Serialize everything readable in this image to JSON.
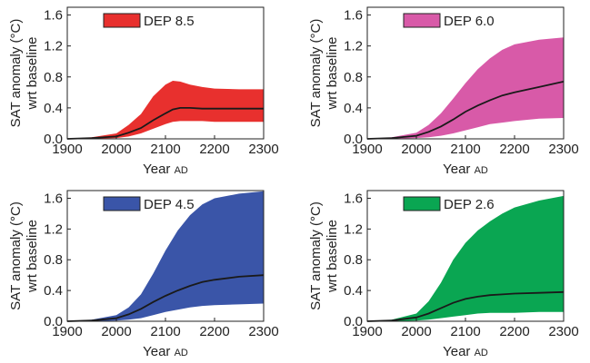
{
  "chart_data": [
    {
      "type": "area",
      "legend": "DEP 8.5",
      "color": "#e8302e",
      "xlabel": "Year",
      "xlabel_suffix": "AD",
      "ylabel_line1": "SAT anomaly (°C)",
      "ylabel_line2": "wrt baseline",
      "xlim": [
        1900,
        2300
      ],
      "ylim": [
        0,
        1.7
      ],
      "xticks": [
        1900,
        2000,
        2100,
        2200,
        2300
      ],
      "yticks": [
        0.0,
        0.4,
        0.8,
        1.2,
        1.6
      ],
      "ytick_labels": [
        "0.0",
        "0.4",
        "0.8",
        "1.2",
        "1.6"
      ],
      "legend_position": "top-left",
      "x": [
        1900,
        1950,
        2000,
        2025,
        2050,
        2075,
        2100,
        2115,
        2130,
        2150,
        2175,
        2200,
        2250,
        2300
      ],
      "lower": [
        0,
        0,
        0.01,
        0.03,
        0.07,
        0.13,
        0.19,
        0.22,
        0.23,
        0.23,
        0.23,
        0.22,
        0.22,
        0.22
      ],
      "upper": [
        0,
        0.02,
        0.07,
        0.18,
        0.32,
        0.55,
        0.7,
        0.75,
        0.74,
        0.7,
        0.67,
        0.65,
        0.64,
        0.64
      ],
      "mean": [
        0,
        0.01,
        0.03,
        0.08,
        0.14,
        0.24,
        0.33,
        0.38,
        0.4,
        0.4,
        0.39,
        0.39,
        0.39,
        0.39
      ]
    },
    {
      "type": "area",
      "legend": "DEP 6.0",
      "color": "#d85aa8",
      "xlabel": "Year",
      "xlabel_suffix": "AD",
      "ylabel_line1": "SAT anomaly (°C)",
      "ylabel_line2": "wrt baseline",
      "xlim": [
        1900,
        2300
      ],
      "ylim": [
        0,
        1.7
      ],
      "xticks": [
        1900,
        2000,
        2100,
        2200,
        2300
      ],
      "yticks": [
        0.0,
        0.4,
        0.8,
        1.2,
        1.6
      ],
      "ytick_labels": [
        "0.0",
        "0.4",
        "0.8",
        "1.2",
        "1.6"
      ],
      "legend_position": "top-left",
      "x": [
        1900,
        1950,
        2000,
        2025,
        2050,
        2075,
        2100,
        2125,
        2150,
        2175,
        2200,
        2250,
        2300
      ],
      "lower": [
        0,
        0,
        0.01,
        0.02,
        0.04,
        0.07,
        0.11,
        0.15,
        0.19,
        0.21,
        0.23,
        0.26,
        0.27
      ],
      "upper": [
        0,
        0.02,
        0.08,
        0.18,
        0.33,
        0.52,
        0.72,
        0.9,
        1.04,
        1.15,
        1.22,
        1.28,
        1.31
      ],
      "mean": [
        0,
        0.01,
        0.04,
        0.09,
        0.16,
        0.25,
        0.35,
        0.43,
        0.5,
        0.56,
        0.6,
        0.67,
        0.74
      ]
    },
    {
      "type": "area",
      "legend": "DEP 4.5",
      "color": "#3a55a8",
      "xlabel": "Year",
      "xlabel_suffix": "AD",
      "ylabel_line1": "SAT anomaly (°C)",
      "ylabel_line2": "wrt baseline",
      "xlim": [
        1900,
        2300
      ],
      "ylim": [
        0,
        1.7
      ],
      "xticks": [
        1900,
        2000,
        2100,
        2200,
        2300
      ],
      "yticks": [
        0.0,
        0.4,
        0.8,
        1.2,
        1.6
      ],
      "ytick_labels": [
        "0.0",
        "0.4",
        "0.8",
        "1.2",
        "1.6"
      ],
      "legend_position": "top-left",
      "x": [
        1900,
        1950,
        2000,
        2025,
        2050,
        2075,
        2100,
        2125,
        2150,
        2175,
        2200,
        2250,
        2300
      ],
      "lower": [
        0,
        0,
        0.01,
        0.02,
        0.04,
        0.08,
        0.12,
        0.15,
        0.18,
        0.2,
        0.21,
        0.22,
        0.23
      ],
      "upper": [
        0,
        0.02,
        0.08,
        0.18,
        0.35,
        0.62,
        0.92,
        1.18,
        1.38,
        1.52,
        1.6,
        1.66,
        1.69
      ],
      "mean": [
        0,
        0.01,
        0.04,
        0.09,
        0.16,
        0.25,
        0.33,
        0.4,
        0.46,
        0.51,
        0.54,
        0.58,
        0.6
      ]
    },
    {
      "type": "area",
      "legend": "DEP 2.6",
      "color": "#0aa652",
      "xlabel": "Year",
      "xlabel_suffix": "AD",
      "ylabel_line1": "SAT anomaly (°C)",
      "ylabel_line2": "wrt baseline",
      "xlim": [
        1900,
        2300
      ],
      "ylim": [
        0,
        1.7
      ],
      "xticks": [
        1900,
        2000,
        2100,
        2200,
        2300
      ],
      "yticks": [
        0.0,
        0.4,
        0.8,
        1.2,
        1.6
      ],
      "ytick_labels": [
        "0.0",
        "0.4",
        "0.8",
        "1.2",
        "1.6"
      ],
      "legend_position": "top-left",
      "x": [
        1900,
        1950,
        2000,
        2025,
        2050,
        2075,
        2100,
        2125,
        2150,
        2175,
        2200,
        2250,
        2300
      ],
      "lower": [
        0,
        0,
        0.01,
        0.02,
        0.04,
        0.06,
        0.08,
        0.1,
        0.11,
        0.11,
        0.11,
        0.12,
        0.12
      ],
      "upper": [
        0,
        0.02,
        0.1,
        0.26,
        0.5,
        0.8,
        1.02,
        1.18,
        1.3,
        1.4,
        1.48,
        1.57,
        1.63
      ],
      "mean": [
        0,
        0.01,
        0.05,
        0.1,
        0.17,
        0.24,
        0.29,
        0.32,
        0.34,
        0.35,
        0.36,
        0.37,
        0.38
      ]
    }
  ]
}
